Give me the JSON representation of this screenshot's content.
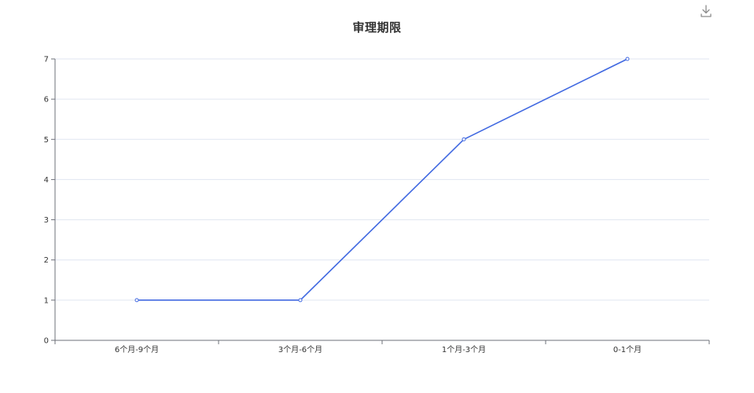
{
  "toolbar": {
    "download_icon": "download-icon"
  },
  "chart_data": {
    "type": "line",
    "title": "审理期限",
    "categories": [
      "6个月-9个月",
      "3个月-6个月",
      "1个月-3个月",
      "0-1个月"
    ],
    "series": [
      {
        "values": [
          1,
          1,
          5,
          7
        ],
        "color": "#4169e1"
      }
    ],
    "ylim": [
      0,
      7
    ],
    "yticks": [
      0,
      1,
      2,
      3,
      4,
      5,
      6,
      7
    ],
    "grid": true,
    "legend": "none",
    "colors": {
      "axis": "#6e7079",
      "grid": "#e0e6f1",
      "text": "#333333"
    }
  }
}
